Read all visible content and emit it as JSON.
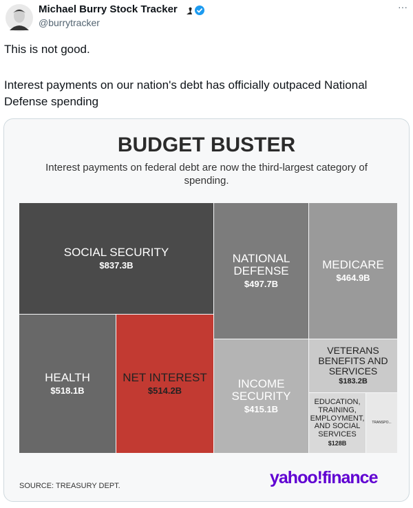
{
  "tweet": {
    "name": "Michael Burry Stock Tracker",
    "handle": "@burrytracker",
    "text": [
      "This is not good.",
      "Interest payments on our nation's debt has officially outpaced National Defense spending"
    ]
  },
  "chart_data": {
    "type": "treemap",
    "title": "BUDGET BUSTER",
    "subtitle": "Interest payments on federal debt are now the third-largest category of spending.",
    "categories": [
      "SOCIAL SECURITY",
      "HEALTH",
      "NET INTEREST",
      "NATIONAL DEFENSE",
      "MEDICARE",
      "INCOME SECURITY",
      "VETERANS BENEFITS AND SERVICES",
      "EDUCATION, TRAINING, EMPLOYMENT, AND SOCIAL SERVICES",
      "TRANSPO..."
    ],
    "values": [
      837.3,
      518.1,
      514.2,
      497.7,
      464.9,
      415.1,
      183.2,
      128,
      72
    ],
    "value_labels": [
      "$837.3B",
      "$518.1B",
      "$514.2B",
      "$497.7B",
      "$464.9B",
      "$415.1B",
      "$183.2B",
      "$128B",
      null
    ],
    "colors": [
      "#4a4a4a",
      "#686868",
      "#c23a32",
      "#7c7c7c",
      "#9a9a9a",
      "#b4b4b4",
      "#cacaca",
      "#d9d9d9",
      "#e8e8e8"
    ],
    "source": "SOURCE: TREASURY DEPT.",
    "logo": "yahoo!finance"
  }
}
